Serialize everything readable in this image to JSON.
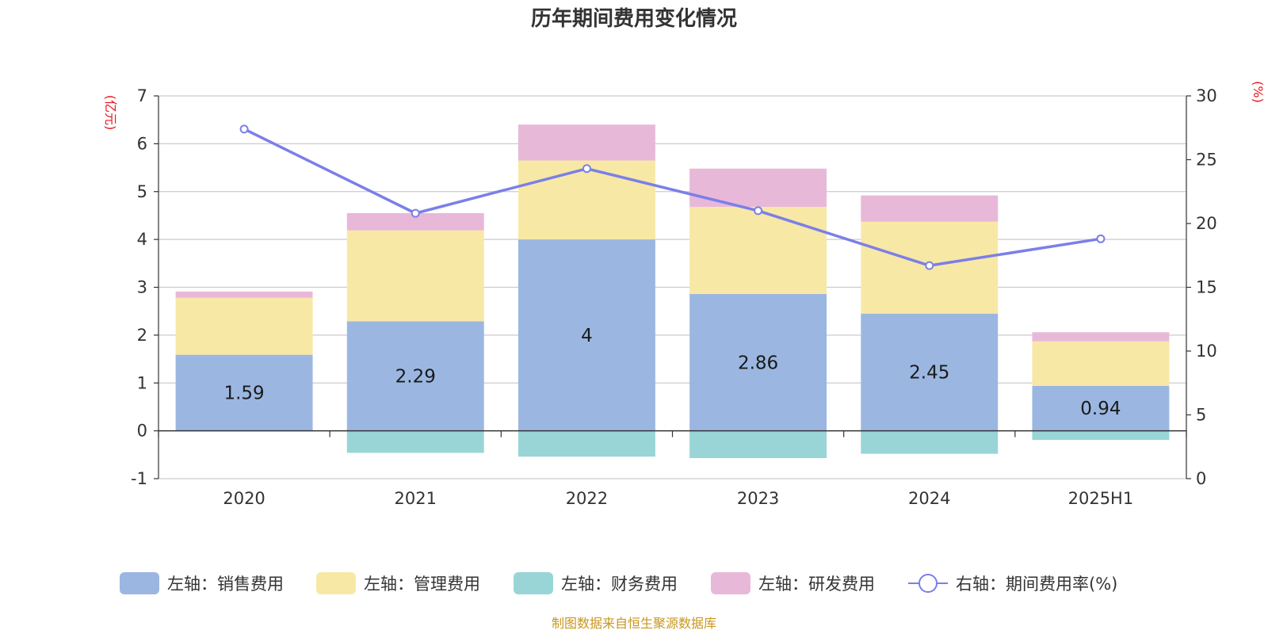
{
  "chart_data": {
    "type": "bar",
    "title": "历年期间费用变化情况",
    "categories": [
      "2020",
      "2021",
      "2022",
      "2023",
      "2024",
      "2025H1"
    ],
    "left_axis": {
      "unit": "(亿元)",
      "range": [
        -1,
        7
      ],
      "ticks": [
        "-1",
        "0",
        "1",
        "2",
        "3",
        "4",
        "5",
        "6",
        "7"
      ]
    },
    "right_axis": {
      "unit": "(%)",
      "range": [
        0,
        30
      ],
      "ticks": [
        "0",
        "5",
        "10",
        "15",
        "20",
        "25",
        "30"
      ]
    },
    "series": [
      {
        "name": "左轴：销售费用",
        "type": "bar",
        "color": "#9bb7e1",
        "values": [
          1.59,
          2.29,
          4,
          2.86,
          2.45,
          0.94
        ],
        "labels": [
          "1.59",
          "2.29",
          "4",
          "2.86",
          "2.45",
          "0.94"
        ]
      },
      {
        "name": "左轴：管理费用",
        "type": "bar",
        "color": "#f8e8a6",
        "values": [
          1.19,
          1.9,
          1.65,
          1.82,
          1.92,
          0.93
        ]
      },
      {
        "name": "左轴：财务费用",
        "type": "bar",
        "color": "#99d5d7",
        "values": [
          0.0,
          -0.46,
          -0.54,
          -0.57,
          -0.48,
          -0.19
        ]
      },
      {
        "name": "左轴：研发费用",
        "type": "bar",
        "color": "#e8b8d9",
        "values": [
          0.13,
          0.36,
          0.75,
          0.8,
          0.55,
          0.19
        ]
      },
      {
        "name": "右轴：期间费用率(%)",
        "type": "line",
        "color": "#7b7fe8",
        "values": [
          27.4,
          20.8,
          24.3,
          21.0,
          16.7,
          18.8
        ]
      }
    ],
    "grid": true,
    "legend_position": "bottom"
  },
  "source_note": "制图数据来自恒生聚源数据库"
}
